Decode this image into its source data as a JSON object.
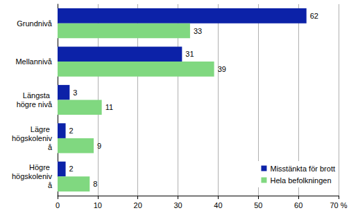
{
  "chart_data": {
    "type": "bar",
    "orientation": "horizontal",
    "categories": [
      "Grundnivå",
      "Mellannivå",
      "Längsta högre nivå",
      "Lägre högskolenivå",
      "Högre högskolenivå"
    ],
    "series": [
      {
        "name": "Misstänkta för brott",
        "color": "#0c22a8",
        "values": [
          62,
          31,
          3,
          2,
          2
        ]
      },
      {
        "name": "Hela befolkningen",
        "color": "#80d880",
        "values": [
          33,
          39,
          11,
          9,
          8
        ]
      }
    ],
    "xlim": [
      0,
      70
    ],
    "xticks": [
      0,
      10,
      20,
      30,
      40,
      50,
      60,
      {
        "value": 70,
        "label": "70 %"
      }
    ],
    "grid": true,
    "legend": "lower right",
    "data_labels": true
  }
}
